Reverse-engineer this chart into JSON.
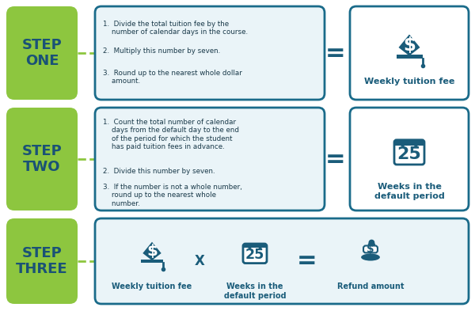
{
  "bg_color": "#ffffff",
  "step_box_color": "#8dc63f",
  "step_text_color": "#1a5276",
  "info_box_border_color": "#1a6b8a",
  "info_box_bg": "#eaf4f8",
  "result_box_border_color": "#1a6b8a",
  "result_box_bg": "#ffffff",
  "dark_blue": "#1a5c7a",
  "steps": [
    {
      "label": "STEP\nONE",
      "points": [
        "1.  Divide the total tuition fee by the\n    number of calendar days in the course.",
        "2.  Multiply this number by seven.",
        "3.  Round up to the nearest whole dollar\n    amount."
      ],
      "result_label": "Weekly tuition fee"
    },
    {
      "label": "STEP\nTWO",
      "points": [
        "1.  Count the total number of calendar\n    days from the default day to the end\n    of the period for which the student\n    has paid tuition fees in advance.",
        "2.  Divide this number by seven.",
        "3.  If the number is not a whole number,\n    round up to the nearest whole\n    number."
      ],
      "result_label": "Weeks in the\ndefault period"
    }
  ],
  "step3_label": "STEP\nTHREE",
  "step3_items": [
    "Weekly tuition fee",
    "Weeks in the\ndefault period",
    "Refund amount"
  ],
  "equals_color": "#1a5c7a",
  "dashed_line_color": "#8dc63f"
}
